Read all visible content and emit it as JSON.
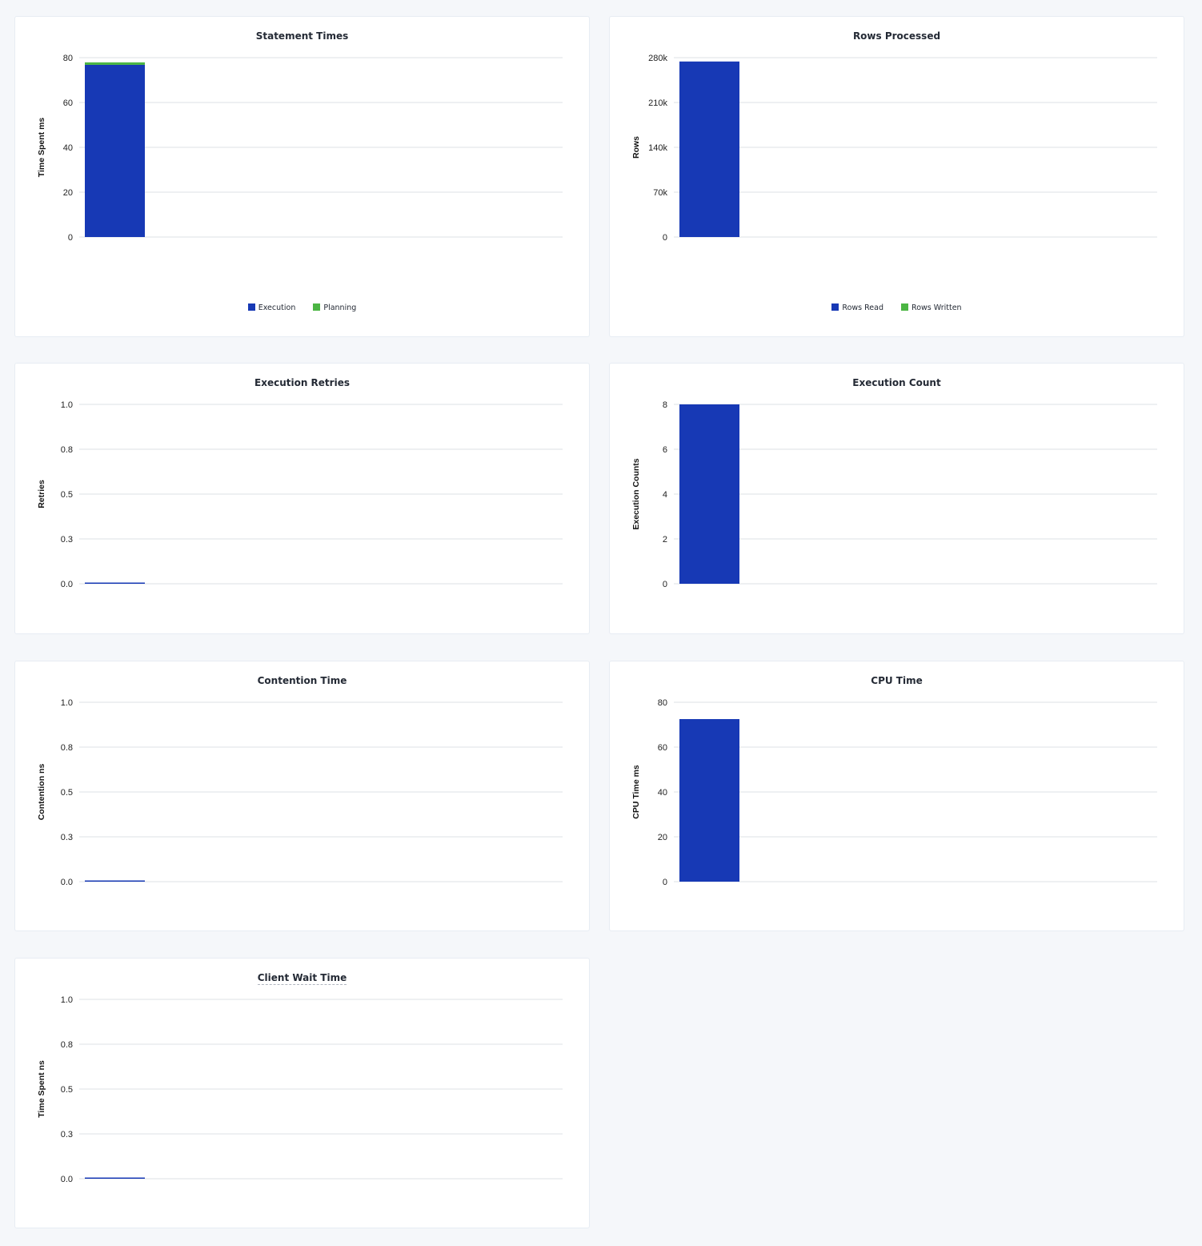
{
  "colors": {
    "primary": "#1739b5",
    "secondary": "#4bb543",
    "grid": "#e9ebee",
    "text": "#242a35"
  },
  "chart_data": [
    {
      "id": "statement-times",
      "type": "bar",
      "stacked": true,
      "title": "Statement Times",
      "ylabel": "Time Spent ms",
      "ylim": [
        0,
        80
      ],
      "yticks": [
        "0",
        "20",
        "40",
        "60",
        "80"
      ],
      "categories": [
        ""
      ],
      "series": [
        {
          "name": "Execution",
          "values": [
            76.8
          ]
        },
        {
          "name": "Planning",
          "values": [
            1.1
          ]
        }
      ],
      "legend": "bottom",
      "grid": true
    },
    {
      "id": "rows-processed",
      "type": "bar",
      "stacked": true,
      "title": "Rows Processed",
      "ylabel": "Rows",
      "ylim": [
        0,
        280000
      ],
      "yticks": [
        "0",
        "70k",
        "140k",
        "210k",
        "280k"
      ],
      "categories": [
        ""
      ],
      "series": [
        {
          "name": "Rows Read",
          "values": [
            274000
          ]
        },
        {
          "name": "Rows Written",
          "values": [
            0
          ]
        }
      ],
      "legend": "bottom",
      "grid": true
    },
    {
      "id": "execution-retries",
      "type": "bar",
      "title": "Execution Retries",
      "ylabel": "Retries",
      "ylim": [
        0,
        1
      ],
      "yticks": [
        "0.0",
        "0.3",
        "0.5",
        "0.8",
        "1.0"
      ],
      "categories": [
        ""
      ],
      "series": [
        {
          "values": [
            0
          ]
        }
      ],
      "grid": true
    },
    {
      "id": "execution-count",
      "type": "bar",
      "title": "Execution Count",
      "ylabel": "Execution Counts",
      "ylim": [
        0,
        8
      ],
      "yticks": [
        "0",
        "2",
        "4",
        "6",
        "8"
      ],
      "categories": [
        ""
      ],
      "series": [
        {
          "values": [
            8
          ]
        }
      ],
      "grid": true
    },
    {
      "id": "contention-time",
      "type": "bar",
      "title": "Contention Time",
      "ylabel": "Contention ns",
      "ylim": [
        0,
        1
      ],
      "yticks": [
        "0.0",
        "0.3",
        "0.5",
        "0.8",
        "1.0"
      ],
      "categories": [
        ""
      ],
      "series": [
        {
          "values": [
            0
          ]
        }
      ],
      "grid": true
    },
    {
      "id": "cpu-time",
      "type": "bar",
      "title": "CPU Time",
      "ylabel": "CPU Time ms",
      "ylim": [
        0,
        80
      ],
      "yticks": [
        "0",
        "20",
        "40",
        "60",
        "80"
      ],
      "categories": [
        ""
      ],
      "series": [
        {
          "values": [
            72.5
          ]
        }
      ],
      "grid": true
    },
    {
      "id": "client-wait-time",
      "type": "bar",
      "title": "Client Wait Time",
      "title_has_tooltip": true,
      "ylabel": "Time Spent ns",
      "ylim": [
        0,
        1
      ],
      "yticks": [
        "0.0",
        "0.3",
        "0.5",
        "0.8",
        "1.0"
      ],
      "categories": [
        ""
      ],
      "series": [
        {
          "values": [
            0
          ]
        }
      ],
      "grid": true
    }
  ]
}
